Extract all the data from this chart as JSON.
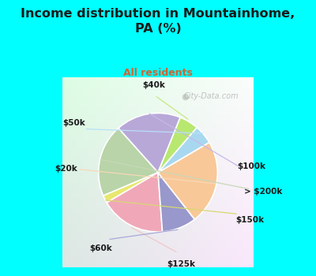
{
  "title": "Income distribution in Mountainhome,\nPA (%)",
  "subtitle": "All residents",
  "title_color": "#1a1a1a",
  "subtitle_color": "#cc6633",
  "background_outer": "#00ffff",
  "background_inner_color": "#e8f5ee",
  "labels": [
    "$100k",
    "> $200k",
    "$150k",
    "$125k",
    "$60k",
    "$20k",
    "$50k",
    "$40k"
  ],
  "sizes": [
    17,
    19,
    2,
    17,
    9,
    22,
    5,
    5
  ],
  "colors": [
    "#b8a8d8",
    "#b8d4a8",
    "#e8e870",
    "#f0a8b8",
    "#9898cc",
    "#f8c898",
    "#a8d8f0",
    "#b8e870"
  ],
  "startangle": 68,
  "watermark": "City-Data.com"
}
